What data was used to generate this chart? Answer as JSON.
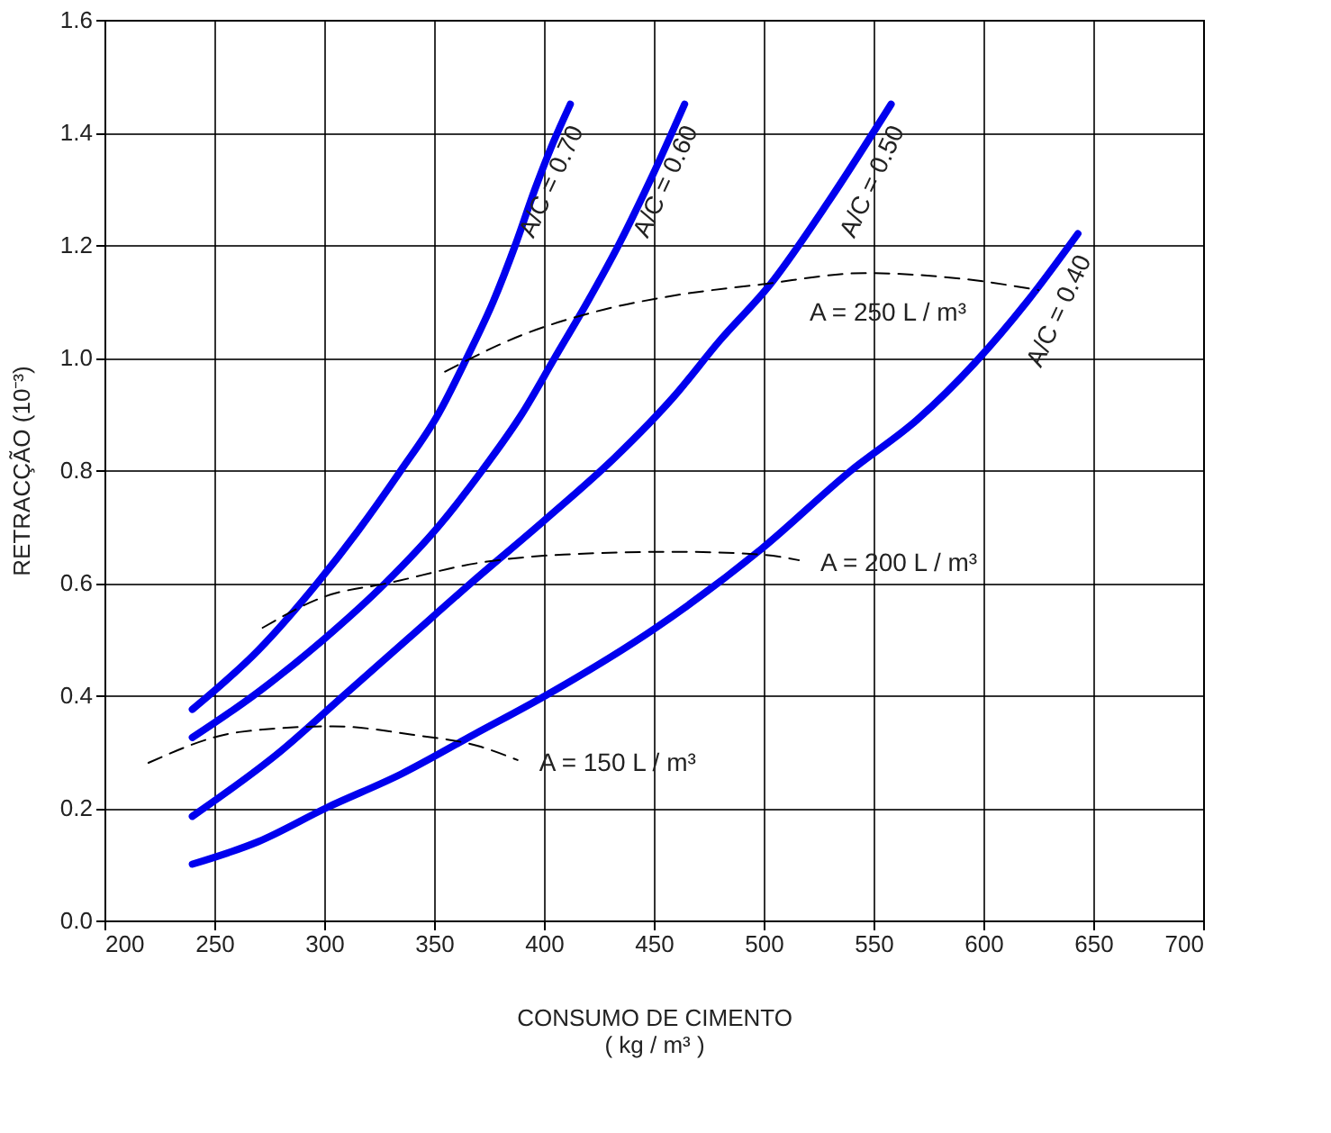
{
  "chart_data": {
    "type": "line",
    "xlabel": "CONSUMO DE CIMENTO\n( kg / m³ )",
    "ylabel": "RETRACÇÃO (10⁻³)",
    "xlim": [
      200,
      700
    ],
    "xticks": [
      200,
      250,
      300,
      350,
      400,
      450,
      500,
      550,
      600,
      650,
      700
    ],
    "ylim": [
      0,
      1.6
    ],
    "yticks": [
      {
        "value": 0,
        "label": "0.0"
      },
      {
        "value": 0.2,
        "label": "0.2"
      },
      {
        "value": 0.4,
        "label": "0.4"
      },
      {
        "value": 0.6,
        "label": "0.6"
      },
      {
        "value": 0.8,
        "label": "0.8"
      },
      {
        "value": 1.0,
        "label": "1.0"
      },
      {
        "value": 1.2,
        "label": "1.2"
      },
      {
        "value": 1.4,
        "label": "1.4"
      },
      {
        "value": 1.6,
        "label": "1.6"
      }
    ],
    "grid": true,
    "marker": "none",
    "series": [
      {
        "name": "A/C = 0.70",
        "color": "#0000ee",
        "line_style": "solid",
        "x": [
          240,
          270,
          297,
          315,
          335,
          352,
          365,
          377,
          387,
          396,
          404,
          412
        ],
        "values": [
          0.375,
          0.48,
          0.6,
          0.69,
          0.8,
          0.9,
          1.0,
          1.1,
          1.2,
          1.3,
          1.38,
          1.45
        ]
      },
      {
        "name": "A/C = 0.60",
        "color": "#0000ee",
        "line_style": "solid",
        "x": [
          240,
          268,
          300,
          328,
          352,
          372,
          390,
          405,
          420,
          434,
          449,
          464
        ],
        "values": [
          0.325,
          0.4,
          0.5,
          0.6,
          0.7,
          0.8,
          0.9,
          1.0,
          1.1,
          1.2,
          1.32,
          1.45
        ]
      },
      {
        "name": "A/C = 0.50",
        "color": "#0000ee",
        "line_style": "solid",
        "x": [
          240,
          280,
          309,
          338,
          367,
          400,
          433,
          459,
          480,
          503,
          530,
          558
        ],
        "values": [
          0.185,
          0.3,
          0.4,
          0.5,
          0.6,
          0.71,
          0.825,
          0.93,
          1.03,
          1.13,
          1.28,
          1.45
        ]
      },
      {
        "name": "A/C = 0.40",
        "color": "#0000ee",
        "line_style": "solid",
        "x": [
          240,
          270,
          301,
          335,
          368,
          401,
          451,
          499,
          540,
          570,
          596,
          620,
          643
        ],
        "values": [
          0.1,
          0.14,
          0.2,
          0.26,
          0.33,
          0.4,
          0.52,
          0.66,
          0.8,
          0.89,
          0.99,
          1.1,
          1.22
        ]
      },
      {
        "name": "A = 250 L / m³",
        "color": "#000000",
        "line_style": "dashed",
        "x": [
          355,
          390,
          422,
          459,
          499,
          546,
          590,
          625
        ],
        "values": [
          0.975,
          1.04,
          1.08,
          1.11,
          1.13,
          1.15,
          1.14,
          1.12
        ]
      },
      {
        "name": "A = 200 L / m³",
        "color": "#000000",
        "line_style": "dashed",
        "x": [
          272,
          300,
          330,
          370,
          409,
          460,
          499,
          516
        ],
        "values": [
          0.52,
          0.575,
          0.6,
          0.635,
          0.65,
          0.655,
          0.65,
          0.64
        ]
      },
      {
        "name": "A = 150 L / m³",
        "color": "#000000",
        "line_style": "dashed",
        "x": [
          220,
          262,
          304,
          340,
          370,
          388
        ],
        "values": [
          0.28,
          0.335,
          0.345,
          0.33,
          0.31,
          0.285
        ]
      }
    ]
  }
}
